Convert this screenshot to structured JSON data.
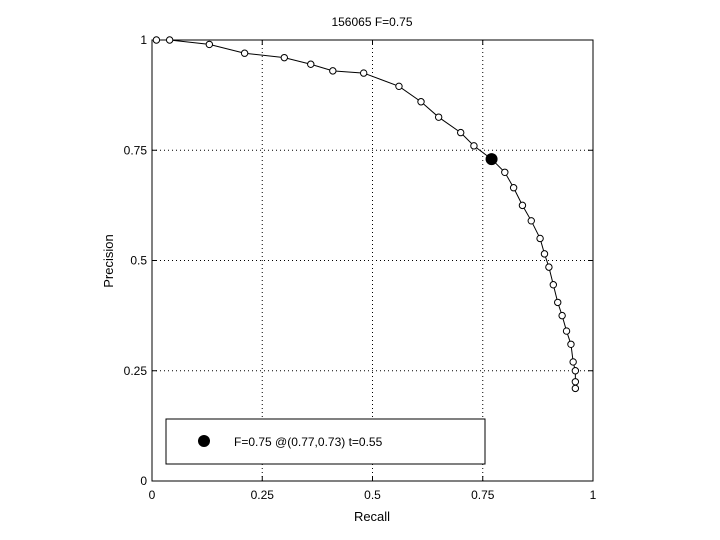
{
  "chart_data": {
    "type": "line",
    "title": "156065 F=0.75",
    "xlabel": "Recall",
    "ylabel": "Precision",
    "xlim": [
      0,
      1
    ],
    "ylim": [
      0,
      1
    ],
    "xticks": [
      0,
      0.25,
      0.5,
      0.75,
      1
    ],
    "yticks": [
      0,
      0.25,
      0.5,
      0.75,
      1
    ],
    "xtick_labels": [
      "0",
      "0.25",
      "0.5",
      "0.75",
      "1"
    ],
    "ytick_labels": [
      "0",
      "0.25",
      "0.5",
      "0.75",
      "1"
    ],
    "grid": true,
    "series": [
      {
        "marker": "open-circle",
        "color": "#000000",
        "points": [
          [
            0.01,
            1.0
          ],
          [
            0.04,
            1.0
          ],
          [
            0.13,
            0.99
          ],
          [
            0.21,
            0.97
          ],
          [
            0.3,
            0.96
          ],
          [
            0.36,
            0.945
          ],
          [
            0.41,
            0.93
          ],
          [
            0.48,
            0.925
          ],
          [
            0.56,
            0.895
          ],
          [
            0.61,
            0.86
          ],
          [
            0.65,
            0.825
          ],
          [
            0.7,
            0.79
          ],
          [
            0.73,
            0.76
          ],
          [
            0.77,
            0.73
          ],
          [
            0.8,
            0.7
          ],
          [
            0.82,
            0.665
          ],
          [
            0.84,
            0.625
          ],
          [
            0.86,
            0.59
          ],
          [
            0.88,
            0.55
          ],
          [
            0.89,
            0.515
          ],
          [
            0.9,
            0.485
          ],
          [
            0.91,
            0.445
          ],
          [
            0.92,
            0.405
          ],
          [
            0.93,
            0.375
          ],
          [
            0.94,
            0.34
          ],
          [
            0.95,
            0.31
          ],
          [
            0.955,
            0.27
          ],
          [
            0.96,
            0.25
          ],
          [
            0.96,
            0.225
          ],
          [
            0.96,
            0.21
          ]
        ]
      }
    ],
    "highlight": {
      "recall": 0.77,
      "precision": 0.73,
      "marker": "filled-circle"
    },
    "legend": {
      "position": "bottom-left",
      "entries": [
        {
          "label": "F=0.75 @(0.77,0.73) t=0.55",
          "marker": "filled-circle"
        }
      ]
    }
  }
}
